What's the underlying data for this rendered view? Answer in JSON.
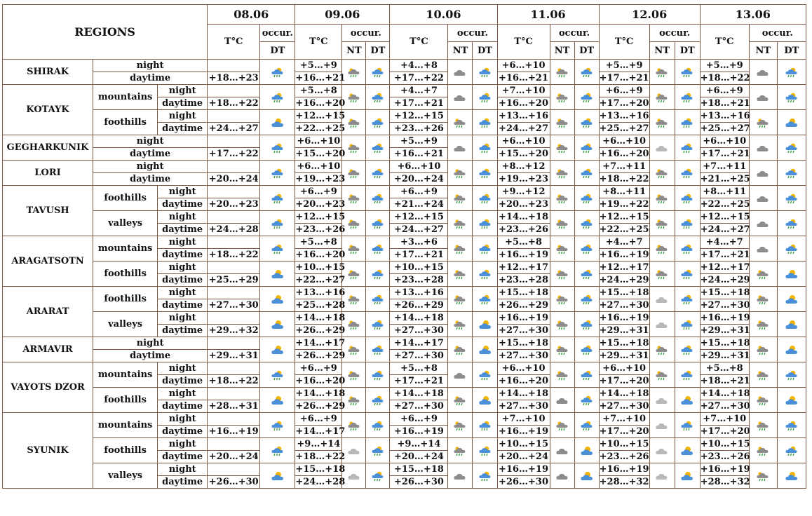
{
  "header": {
    "regions_label": "REGIONS",
    "temp_label": "T°C",
    "occur_label": "occur.",
    "nt_label": "NT",
    "dt_label": "DT",
    "dates": [
      "08.06",
      "09.06",
      "10.06",
      "11.06",
      "12.06",
      "13.06"
    ]
  },
  "colors": {
    "border": "#7b5a45",
    "cloud_grey": "#8c8c8c",
    "cloud_blue": "#4a90d9",
    "sun": "#f5b400",
    "rain": "#2e9a3c"
  },
  "time_labels": {
    "night": "night",
    "daytime": "daytime"
  },
  "groups": [
    {
      "region": "SHIRAK",
      "subs": [
        {
          "name": "",
          "night": [
            "",
            "+5…+9",
            "+4…+8",
            "+6…+10",
            "+5…+9",
            "+5…+9"
          ],
          "day": [
            "+18…+23",
            "+16…+21",
            "+17…+22",
            "+16…+21",
            "+17…+21",
            "+18…+22"
          ],
          "icons": {
            "d08": "sun-cloud-rain",
            "n09": "cloud-rain",
            "d09": "sun-cloud-rain",
            "n10": "cloud",
            "d10": "sun-cloud-rain",
            "n11": "cloud-rain",
            "d11": "sun-cloud-rain",
            "n12": "cloud-rain",
            "d12": "sun-cloud-rain",
            "n13": "cloud",
            "d13": "sun-cloud-rain"
          }
        }
      ]
    },
    {
      "region": "KOTAYK",
      "subs": [
        {
          "name": "mountains",
          "night": [
            "",
            "+5…+8",
            "+4…+7",
            "+7…+10",
            "+6…+9",
            "+6…+9"
          ],
          "day": [
            "+18…+22",
            "+16…+20",
            "+17…+21",
            "+16…+20",
            "+17…+20",
            "+18…+21"
          ],
          "icons": {
            "d08": "sun-cloud-rain",
            "n09": "cloud-rain",
            "d09": "sun-cloud-rain",
            "n10": "cloud",
            "d10": "sun-cloud-rain",
            "n11": "cloud-rain",
            "d11": "sun-cloud-rain",
            "n12": "cloud-rain",
            "d12": "sun-cloud-rain",
            "n13": "cloud",
            "d13": "sun-cloud-rain"
          }
        },
        {
          "name": "foothills",
          "night": [
            "",
            "+12…+15",
            "+12…+15",
            "+13…+16",
            "+13…+16",
            "+13…+16"
          ],
          "day": [
            "+24…+27",
            "+22…+25",
            "+23…+26",
            "+24…+27",
            "+25…+27",
            "+25…+27"
          ],
          "icons": {
            "d08": "sun-cloud",
            "n09": "cloud-rain",
            "d09": "sun-cloud-rain",
            "n10": "cloud-rain",
            "d10": "sun-cloud-rain",
            "n11": "cloud-rain",
            "d11": "sun-cloud-rain",
            "n12": "cloud-rain",
            "d12": "sun-cloud-rain",
            "n13": "cloud-rain",
            "d13": "sun-cloud"
          }
        }
      ]
    },
    {
      "region": "GEGHARKUNIK",
      "subs": [
        {
          "name": "",
          "night": [
            "",
            "+6…+10",
            "+5…+9",
            "+6…+10",
            "+6…+10",
            "+6…+10"
          ],
          "day": [
            "+17…+22",
            "+15…+20",
            "+16…+21",
            "+15…+20",
            "+16…+20",
            "+17…+21"
          ],
          "icons": {
            "d08": "sun-cloud-rain",
            "n09": "cloud-rain",
            "d09": "sun-cloud-rain",
            "n10": "cloud",
            "d10": "sun-cloud-rain",
            "n11": "cloud-rain",
            "d11": "sun-cloud-rain",
            "n12": "cloud-light",
            "d12": "sun-cloud-rain",
            "n13": "cloud",
            "d13": "sun-cloud-rain"
          }
        }
      ]
    },
    {
      "region": "LORI",
      "subs": [
        {
          "name": "",
          "night": [
            "",
            "+6…+10",
            "+6…+10",
            "+8…+12",
            "+7…+11",
            "+7…+11"
          ],
          "day": [
            "+20…+24",
            "+19…+23",
            "+20…+24",
            "+19…+23",
            "+18…+22",
            "+21…+25"
          ],
          "icons": {
            "d08": "sun-cloud-rain",
            "n09": "cloud-rain",
            "d09": "sun-cloud-rain",
            "n10": "cloud-rain",
            "d10": "sun-cloud-rain",
            "n11": "cloud-rain",
            "d11": "sun-cloud-rain",
            "n12": "cloud-rain",
            "d12": "sun-cloud-rain",
            "n13": "cloud",
            "d13": "sun-cloud-rain"
          }
        }
      ]
    },
    {
      "region": "TAVUSH",
      "subs": [
        {
          "name": "foothills",
          "night": [
            "",
            "+6…+9",
            "+6…+9",
            "+9…+12",
            "+8…+11",
            "+8…+11"
          ],
          "day": [
            "+20…+23",
            "+20…+23",
            "+21…+24",
            "+20…+23",
            "+19…+22",
            "+22…+25"
          ],
          "icons": {
            "d08": "sun-cloud-rain",
            "n09": "cloud-rain",
            "d09": "sun-cloud-rain",
            "n10": "cloud-rain",
            "d10": "sun-cloud-rain",
            "n11": "cloud-rain",
            "d11": "sun-cloud-rain",
            "n12": "cloud-rain",
            "d12": "sun-cloud-rain",
            "n13": "cloud",
            "d13": "sun-cloud-rain"
          }
        },
        {
          "name": "valleys",
          "night": [
            "",
            "+12…+15",
            "+12…+15",
            "+14…+18",
            "+12…+15",
            "+12…+15"
          ],
          "day": [
            "+24…+28",
            "+23…+26",
            "+24…+27",
            "+23…+26",
            "+22…+25",
            "+24…+27"
          ],
          "icons": {
            "d08": "sun-cloud-rain",
            "n09": "cloud-rain",
            "d09": "sun-cloud-rain",
            "n10": "cloud-rain",
            "d10": "sun-cloud-rain",
            "n11": "cloud-rain",
            "d11": "sun-cloud-rain",
            "n12": "cloud-rain",
            "d12": "sun-cloud-rain",
            "n13": "cloud",
            "d13": "sun-cloud-rain"
          }
        }
      ]
    },
    {
      "region": "ARAGATSOTN",
      "subs": [
        {
          "name": "mountains",
          "night": [
            "",
            "+5…+8",
            "+3…+6",
            "+5…+8",
            "+4…+7",
            "+4…+7"
          ],
          "day": [
            "+18…+22",
            "+16…+20",
            "+17…+21",
            "+16…+19",
            "+16…+19",
            "+17…+21"
          ],
          "icons": {
            "d08": "sun-cloud-rain",
            "n09": "cloud-rain",
            "d09": "sun-cloud-rain",
            "n10": "cloud-rain",
            "d10": "sun-cloud-rain",
            "n11": "cloud-rain",
            "d11": "sun-cloud-rain",
            "n12": "cloud-rain",
            "d12": "sun-cloud-rain",
            "n13": "cloud",
            "d13": "sun-cloud-rain"
          }
        },
        {
          "name": "foothills",
          "night": [
            "",
            "+10…+15",
            "+10…+15",
            "+12…+17",
            "+12…+17",
            "+12…+17"
          ],
          "day": [
            "+25…+29",
            "+22…+27",
            "+23…+28",
            "+23…+28",
            "+24…+29",
            "+24…+29"
          ],
          "icons": {
            "d08": "sun-cloud",
            "n09": "cloud-rain",
            "d09": "sun-cloud-rain",
            "n10": "cloud-rain",
            "d10": "sun-cloud-rain",
            "n11": "cloud-rain",
            "d11": "sun-cloud-rain",
            "n12": "cloud-rain",
            "d12": "sun-cloud-rain",
            "n13": "cloud-rain",
            "d13": "sun-cloud"
          }
        }
      ]
    },
    {
      "region": "ARARAT",
      "subs": [
        {
          "name": "foothills",
          "night": [
            "",
            "+13…+16",
            "+13…+16",
            "+15…+18",
            "+15…+18",
            "+15…+18"
          ],
          "day": [
            "+27…+30",
            "+25…+28",
            "+26…+29",
            "+26…+29",
            "+27…+30",
            "+27…+30"
          ],
          "icons": {
            "d08": "sun-cloud",
            "n09": "cloud-rain",
            "d09": "sun-cloud-rain",
            "n10": "cloud-rain",
            "d10": "sun-cloud-rain",
            "n11": "cloud-rain",
            "d11": "sun-cloud-rain",
            "n12": "cloud-light",
            "d12": "sun-cloud-rain",
            "n13": "cloud-rain",
            "d13": "sun-cloud"
          }
        },
        {
          "name": "valleys",
          "night": [
            "",
            "+14…+18",
            "+14…+18",
            "+16…+19",
            "+16…+19",
            "+16…+19"
          ],
          "day": [
            "+29…+32",
            "+26…+29",
            "+27…+30",
            "+27…+30",
            "+29…+31",
            "+29…+31"
          ],
          "icons": {
            "d08": "sun-cloud",
            "n09": "cloud-rain",
            "d09": "sun-cloud-rain",
            "n10": "cloud-rain",
            "d10": "sun-cloud",
            "n11": "cloud-rain",
            "d11": "sun-cloud-rain",
            "n12": "cloud-light",
            "d12": "sun-cloud-rain",
            "n13": "cloud-rain",
            "d13": "sun-cloud"
          }
        }
      ]
    },
    {
      "region": "ARMAVIR",
      "subs": [
        {
          "name": "",
          "night": [
            "",
            "+14…+17",
            "+14…+17",
            "+15…+18",
            "+15…+18",
            "+15…+18"
          ],
          "day": [
            "+29…+31",
            "+26…+29",
            "+27…+30",
            "+27…+30",
            "+29…+31",
            "+29…+31"
          ],
          "icons": {
            "d08": "sun-cloud",
            "n09": "cloud-rain",
            "d09": "sun-cloud-rain",
            "n10": "cloud-rain",
            "d10": "sun-cloud",
            "n11": "cloud-rain",
            "d11": "sun-cloud-rain",
            "n12": "cloud-rain",
            "d12": "sun-cloud-rain",
            "n13": "cloud-rain",
            "d13": "sun-cloud"
          }
        }
      ]
    },
    {
      "region": "VAYOTS DZOR",
      "subs": [
        {
          "name": "mountains",
          "night": [
            "",
            "+6…+9",
            "+5…+8",
            "+6…+10",
            "+6…+10",
            "+5…+8"
          ],
          "day": [
            "+18…+22",
            "+16…+20",
            "+17…+21",
            "+16…+20",
            "+17…+20",
            "+18…+21"
          ],
          "icons": {
            "d08": "sun-cloud-rain",
            "n09": "cloud-rain",
            "d09": "sun-cloud-rain",
            "n10": "cloud",
            "d10": "sun-cloud-rain",
            "n11": "cloud-rain",
            "d11": "sun-cloud-rain",
            "n12": "cloud-rain",
            "d12": "sun-cloud-rain",
            "n13": "cloud-rain",
            "d13": "sun-cloud-rain"
          }
        },
        {
          "name": "foothills",
          "night": [
            "",
            "+14…+18",
            "+14…+18",
            "+14…+18",
            "+14…+18",
            "+14…+18"
          ],
          "day": [
            "+28…+31",
            "+26…+29",
            "+27…+30",
            "+27…+30",
            "+27…+30",
            "+27…+30"
          ],
          "icons": {
            "d08": "sun-cloud",
            "n09": "cloud-rain",
            "d09": "sun-cloud-rain",
            "n10": "cloud-rain",
            "d10": "sun-cloud",
            "n11": "cloud",
            "d11": "sun-cloud-rain",
            "n12": "cloud-light",
            "d12": "sun-cloud",
            "n13": "cloud-rain",
            "d13": "sun-cloud"
          }
        }
      ]
    },
    {
      "region": "SYUNIK",
      "subs": [
        {
          "name": "mountains",
          "night": [
            "",
            "+6…+9",
            "+6…+9",
            "+7…+10",
            "+7…+10",
            "+7…+10"
          ],
          "day": [
            "+16…+19",
            "+14…+17",
            "+16…+19",
            "+16…+19",
            "+17…+20",
            "+17…+20"
          ],
          "icons": {
            "d08": "sun-cloud-rain",
            "n09": "cloud-rain",
            "d09": "sun-cloud-rain",
            "n10": "cloud-rain",
            "d10": "sun-cloud-rain",
            "n11": "cloud-rain",
            "d11": "sun-cloud-rain",
            "n12": "cloud-light",
            "d12": "sun-cloud-rain",
            "n13": "cloud-rain",
            "d13": "sun-cloud-rain"
          }
        },
        {
          "name": "foothills",
          "night": [
            "",
            "+9…+14",
            "+9…+14",
            "+10…+15",
            "+10…+15",
            "+10…+15"
          ],
          "day": [
            "+20…+24",
            "+18…+22",
            "+20…+24",
            "+20…+24",
            "+23…+26",
            "+23…+26"
          ],
          "icons": {
            "d08": "sun-cloud-rain",
            "n09": "cloud-light",
            "d09": "sun-cloud-rain",
            "n10": "cloud-rain",
            "d10": "sun-cloud-rain",
            "n11": "cloud",
            "d11": "sun-cloud",
            "n12": "cloud-light",
            "d12": "sun-cloud",
            "n13": "cloud-rain",
            "d13": "sun-cloud-rain"
          }
        },
        {
          "name": "valleys",
          "night": [
            "",
            "+15…+18",
            "+15…+18",
            "+16…+19",
            "+16…+19",
            "+16…+19"
          ],
          "day": [
            "+26…+30",
            "+24…+28",
            "+26…+30",
            "+26…+30",
            "+28…+32",
            "+28…+32"
          ],
          "icons": {
            "d08": "sun-cloud",
            "n09": "cloud-light",
            "d09": "sun-cloud-rain",
            "n10": "cloud",
            "d10": "sun-cloud-rain",
            "n11": "cloud",
            "d11": "sun-cloud",
            "n12": "cloud-light",
            "d12": "sun-cloud",
            "n13": "cloud-rain",
            "d13": "sun-cloud"
          }
        }
      ]
    }
  ]
}
